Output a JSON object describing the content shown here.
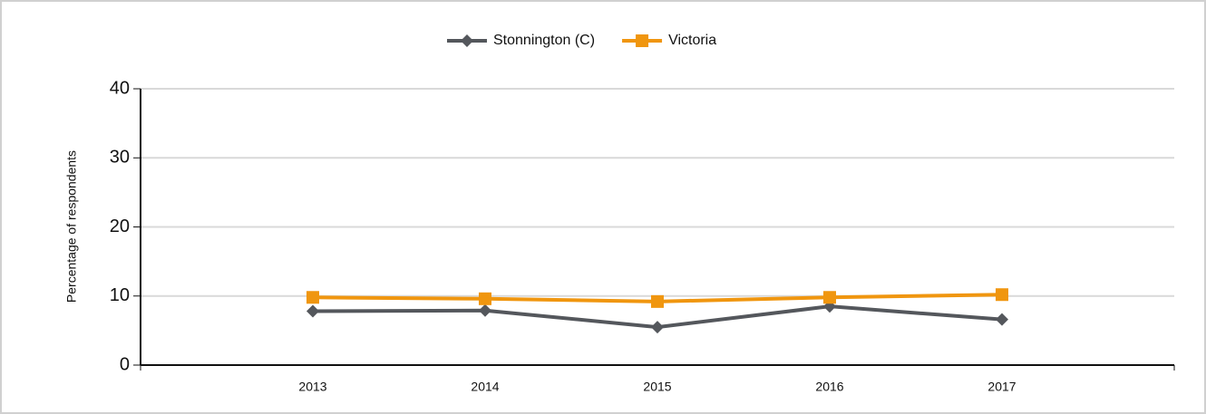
{
  "chart_data": {
    "type": "line",
    "x": [
      2013,
      2014,
      2015,
      2016,
      2017
    ],
    "xlim": [
      2012,
      2018
    ],
    "xticks": [
      2013,
      2014,
      2015,
      2016,
      2017
    ],
    "ylabel": "Percentage of respondents",
    "ylim": [
      0,
      40
    ],
    "yticks": [
      0,
      10,
      20,
      30,
      40
    ],
    "grid": true,
    "legend": "top",
    "series": [
      {
        "name": "Stonnington (C)",
        "color": "#54575c",
        "marker": "diamond",
        "values": [
          7.8,
          7.9,
          5.5,
          8.5,
          6.6
        ]
      },
      {
        "name": "Victoria",
        "color": "#f0960f",
        "marker": "square",
        "values": [
          9.8,
          9.6,
          9.2,
          9.8,
          10.2
        ]
      }
    ]
  }
}
